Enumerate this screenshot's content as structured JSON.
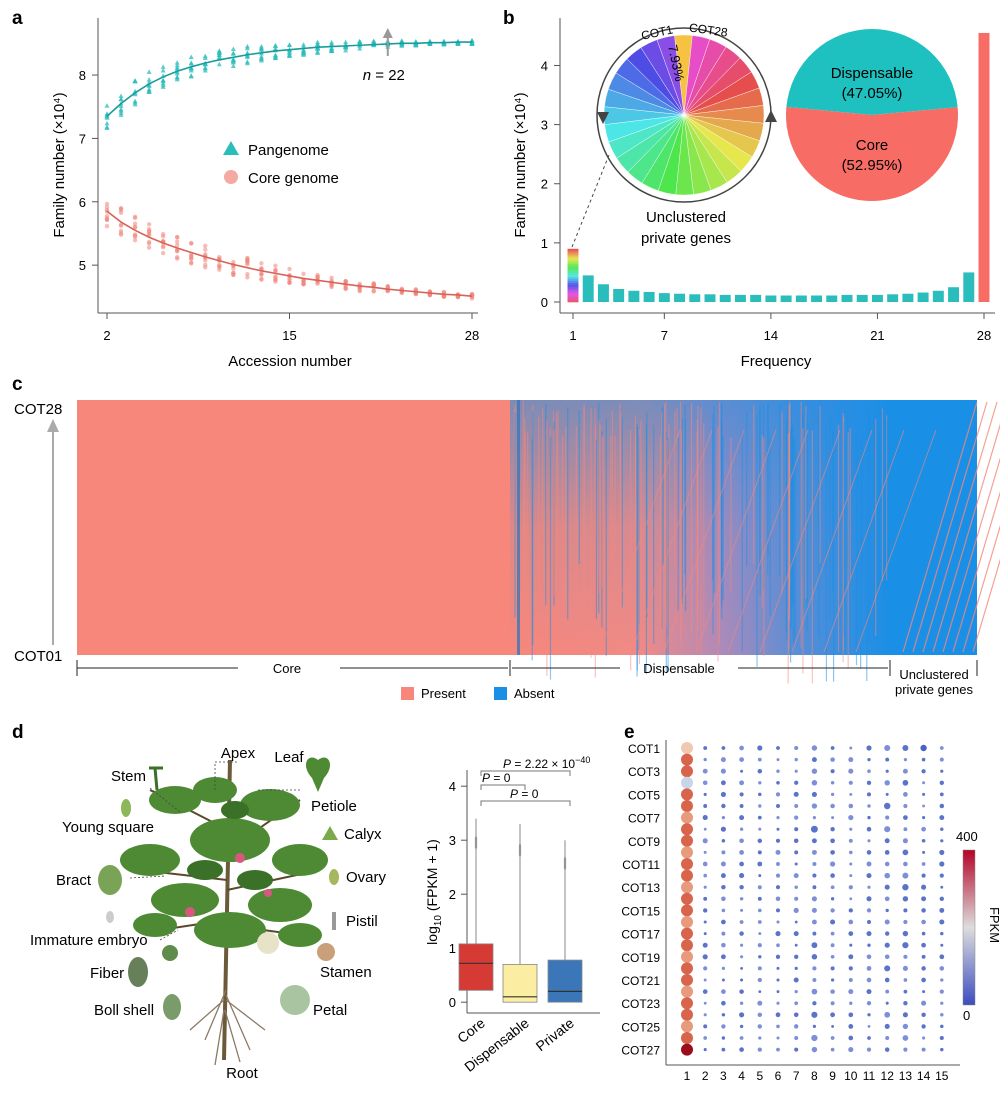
{
  "colors": {
    "teal": "#2bbcbc",
    "salmon": "#f0857a",
    "present": "#f7877b",
    "absent": "#1a8fe6",
    "core_box": "#d63a34",
    "disp_box": "#fbeda2",
    "priv_box": "#3b77b8",
    "disp_pie": "#1fc0c0",
    "core_pie": "#f76d66"
  },
  "chart_data": [
    {
      "panel": "a",
      "type": "line",
      "xlabel": "Accession number",
      "ylabel": "Family number (×10⁴)",
      "xticks": [
        "2",
        "15",
        "28"
      ],
      "yticks": [
        "5",
        "6",
        "7",
        "8"
      ],
      "xlim": [
        2,
        28
      ],
      "ylim": [
        4.45,
        8.9
      ],
      "annotation": {
        "prefix": "n",
        "text": " = 22",
        "x": 22
      },
      "legend": [
        "Pangenome",
        "Core genome"
      ],
      "series": [
        {
          "name": "Pangenome",
          "x": [
            2,
            3,
            4,
            5,
            6,
            7,
            8,
            9,
            10,
            11,
            12,
            13,
            14,
            15,
            16,
            17,
            18,
            19,
            20,
            21,
            22,
            23,
            24,
            25,
            26,
            27,
            28
          ],
          "values": [
            7.35,
            7.55,
            7.72,
            7.86,
            7.97,
            8.06,
            8.13,
            8.19,
            8.24,
            8.28,
            8.32,
            8.35,
            8.38,
            8.4,
            8.42,
            8.44,
            8.45,
            8.46,
            8.47,
            8.48,
            8.49,
            8.5,
            8.5,
            8.51,
            8.51,
            8.52,
            8.52
          ]
        },
        {
          "name": "Core genome",
          "x": [
            2,
            3,
            4,
            5,
            6,
            7,
            8,
            9,
            10,
            11,
            12,
            13,
            14,
            15,
            16,
            17,
            18,
            19,
            20,
            21,
            22,
            23,
            24,
            25,
            26,
            27,
            28
          ],
          "values": [
            5.85,
            5.68,
            5.55,
            5.44,
            5.35,
            5.27,
            5.2,
            5.13,
            5.07,
            5.01,
            4.96,
            4.91,
            4.87,
            4.83,
            4.79,
            4.76,
            4.73,
            4.7,
            4.67,
            4.65,
            4.62,
            4.6,
            4.58,
            4.56,
            4.54,
            4.53,
            4.51
          ]
        }
      ]
    },
    {
      "panel": "b",
      "type": "bar",
      "xlabel": "Frequency",
      "ylabel": "Family number (×10⁴)",
      "xticks": [
        "1",
        "7",
        "14",
        "21",
        "28"
      ],
      "yticks": [
        "0",
        "1",
        "2",
        "3",
        "4"
      ],
      "ylim": [
        0,
        4.6
      ],
      "categories": [
        1,
        2,
        3,
        4,
        5,
        6,
        7,
        8,
        9,
        10,
        11,
        12,
        13,
        14,
        15,
        16,
        17,
        18,
        19,
        20,
        21,
        22,
        23,
        24,
        25,
        26,
        27,
        28
      ],
      "values": [
        0.9,
        0.45,
        0.3,
        0.22,
        0.19,
        0.17,
        0.15,
        0.14,
        0.13,
        0.13,
        0.12,
        0.12,
        0.12,
        0.11,
        0.11,
        0.11,
        0.11,
        0.11,
        0.12,
        0.12,
        0.12,
        0.13,
        0.14,
        0.16,
        0.19,
        0.25,
        0.5,
        4.55
      ],
      "pie_private": {
        "label_start": "COT1",
        "label_end": "COT28",
        "highlight_label": "7.93%",
        "caption_line1": "Unclustered",
        "caption_line2": "private genes"
      },
      "pie_core": {
        "slices": [
          {
            "label": "Dispensable",
            "value_label": "(47.05%)",
            "value": 47.05
          },
          {
            "label": "Core",
            "value_label": "(52.95%)",
            "value": 52.95
          }
        ]
      }
    },
    {
      "panel": "c",
      "type": "heatmap",
      "y_top_label": "COT28",
      "y_bottom_label": "COT01",
      "sections": [
        "Core",
        "Dispensable",
        "Unclustered",
        "private genes"
      ],
      "legend": [
        "Present",
        "Absent"
      ]
    },
    {
      "panel": "d",
      "type": "box",
      "ylabel_prefix": "log",
      "ylabel_sub": "10",
      "ylabel_suffix": " (FPKM + 1)",
      "yticks": [
        "0",
        "1",
        "2",
        "3",
        "4"
      ],
      "ylim": [
        -0.2,
        4.3
      ],
      "categories": [
        "Core",
        "Dispensable",
        "Private"
      ],
      "boxes": [
        {
          "q1": 0.22,
          "median": 0.72,
          "q3": 1.08,
          "lo": 0.0,
          "hi": 3.4
        },
        {
          "q1": 0.0,
          "median": 0.1,
          "q3": 0.7,
          "lo": 0.0,
          "hi": 3.3
        },
        {
          "q1": 0.0,
          "median": 0.2,
          "q3": 0.78,
          "lo": 0.0,
          "hi": 3.0
        }
      ],
      "pvalues": [
        {
          "label": "P",
          "text": " = 2.22 × 10",
          "sup": "−40"
        },
        {
          "label": "P",
          "text": " = 0",
          "sup": ""
        },
        {
          "label": "P",
          "text": " = 0",
          "sup": ""
        }
      ],
      "tissues": [
        "Apex",
        "Leaf",
        "Stem",
        "Petiole",
        "Young square",
        "Calyx",
        "Bract",
        "Ovary",
        "Pistil",
        "Immature embryo",
        "Stamen",
        "Fiber",
        "Boll shell",
        "Petal",
        "Root"
      ]
    },
    {
      "panel": "e",
      "type": "scatter",
      "rows_shown": [
        "COT1",
        "COT3",
        "COT5",
        "COT7",
        "COT9",
        "COT11",
        "COT13",
        "COT15",
        "COT17",
        "COT19",
        "COT21",
        "COT23",
        "COT25",
        "COT27"
      ],
      "columns": [
        "1",
        "2",
        "3",
        "4",
        "5",
        "6",
        "7",
        "8",
        "9",
        "10",
        "11",
        "12",
        "13",
        "14",
        "15"
      ],
      "colorbar": {
        "title": "FPKM",
        "max": "400",
        "min": "0"
      }
    }
  ],
  "panel_labels": [
    "a",
    "b",
    "c",
    "d",
    "e"
  ]
}
